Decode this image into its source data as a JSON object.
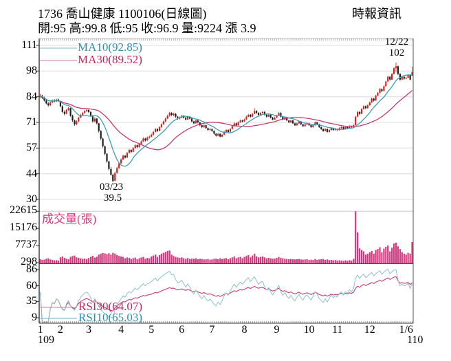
{
  "header": {
    "title": "1736 喬山健康 1100106(日線圖)",
    "provider": "時報資訊",
    "quote_line": "開:95 高:99.8 低:95 收:96.9 量:9224 漲 3.9",
    "open": "95",
    "high": "99.8",
    "low": "95",
    "close": "96.9",
    "volume": "9224",
    "change": "3.9"
  },
  "legends": {
    "ma10": "MA10(92.85)",
    "ma30": "MA30(89.52)",
    "volume": "成交量(張)",
    "rsi30": "RSI30(64.07)",
    "rsi10": "RSI10(65.03)"
  },
  "annotations": {
    "peak_date": "12/22",
    "peak_price": "102",
    "trough_date": "03/23",
    "trough_price": "39.5"
  },
  "colors": {
    "up_candle": "#cb2522",
    "down_candle": "#1c1c1c",
    "ma10_line": "#3f9cb5",
    "ma30_line": "#c43a6c",
    "rsi10_line": "#8cc0cd",
    "rsi30_line": "#c43a6c",
    "volume_bar": "#d8367e",
    "grid": "#dcdcdc",
    "axis": "#333333",
    "label_cyan": "#2e8fae",
    "label_crimson": "#c2275f",
    "label_magenta": "#d8367e"
  },
  "chart_data": {
    "type": "candlestick",
    "panels": [
      "price",
      "volume",
      "rsi"
    ],
    "price_axis": {
      "ticks": [
        {
          "label": "111",
          "v": 111
        },
        {
          "label": "98",
          "v": 97.5
        },
        {
          "label": "84",
          "v": 84
        },
        {
          "label": "71",
          "v": 70.5
        },
        {
          "label": "57",
          "v": 57
        },
        {
          "label": "44",
          "v": 43.5
        },
        {
          "label": "30",
          "v": 30
        }
      ],
      "range": [
        30,
        111
      ]
    },
    "volume_axis": {
      "ticks": [
        {
          "label": "22615",
          "v": 22615
        },
        {
          "label": "15176",
          "v": 15176
        },
        {
          "label": "7737",
          "v": 7737
        },
        {
          "label": "298",
          "v": 298
        }
      ],
      "range": [
        0,
        23000
      ]
    },
    "rsi_axis": {
      "ticks": [
        {
          "label": "86",
          "v": 86
        },
        {
          "label": "60",
          "v": 60
        },
        {
          "label": "35",
          "v": 35
        },
        {
          "label": "9",
          "v": 9
        }
      ],
      "range": [
        0,
        95
      ]
    },
    "x_axis": {
      "month_ticks": [
        {
          "label": "1",
          "index": 0
        },
        {
          "label": "2",
          "index": 10
        },
        {
          "label": "3",
          "index": 24
        },
        {
          "label": "4",
          "index": 40
        },
        {
          "label": "5",
          "index": 55
        },
        {
          "label": "6",
          "index": 70
        },
        {
          "label": "7",
          "index": 85
        },
        {
          "label": "8",
          "index": 101
        },
        {
          "label": "9",
          "index": 117
        },
        {
          "label": "10",
          "index": 133
        },
        {
          "label": "11",
          "index": 147
        },
        {
          "label": "12",
          "index": 163
        },
        {
          "label": "1/6",
          "index": 181
        }
      ],
      "year_left": "109",
      "year_right": "110"
    },
    "indicators": {
      "ma10_period": 10,
      "ma30_period": 30,
      "rsi10_period": 10,
      "rsi30_period": 30,
      "ma10_value": 92.85,
      "ma30_value": 89.52,
      "rsi10_value": 65.03,
      "rsi30_value": 64.07
    },
    "candle_format": [
      "open",
      "high",
      "low",
      "close",
      "volume"
    ],
    "candles": [
      [
        84.0,
        85.5,
        83.2,
        84.5,
        1800
      ],
      [
        84.5,
        85.0,
        82.8,
        83.5,
        1500
      ],
      [
        83.5,
        84.0,
        81.5,
        82.0,
        1600
      ],
      [
        82.0,
        82.5,
        80.0,
        80.5,
        2000
      ],
      [
        80.5,
        81.2,
        78.8,
        79.5,
        2200
      ],
      [
        79.5,
        81.5,
        79.0,
        81.0,
        1700
      ],
      [
        81.0,
        82.6,
        80.6,
        82.0,
        1500
      ],
      [
        82.0,
        82.8,
        81.0,
        81.5,
        1300
      ],
      [
        81.5,
        83.0,
        81.2,
        82.5,
        1400
      ],
      [
        82.5,
        83.0,
        81.4,
        82.0,
        1200
      ],
      [
        81.5,
        81.8,
        78.5,
        79.0,
        2600
      ],
      [
        79.0,
        79.5,
        75.5,
        76.0,
        3000
      ],
      [
        76.0,
        76.8,
        74.2,
        75.0,
        2400
      ],
      [
        75.0,
        77.5,
        74.8,
        77.0,
        2000
      ],
      [
        77.0,
        78.6,
        76.5,
        78.0,
        1800
      ],
      [
        78.0,
        78.2,
        73.5,
        74.0,
        2800
      ],
      [
        74.0,
        74.5,
        70.8,
        71.5,
        3200
      ],
      [
        71.5,
        72.0,
        68.8,
        69.5,
        3400
      ],
      [
        69.5,
        71.6,
        69.0,
        71.0,
        2600
      ],
      [
        71.0,
        73.5,
        70.6,
        73.0,
        2400
      ],
      [
        73.0,
        75.0,
        72.6,
        74.5,
        2200
      ],
      [
        74.5,
        76.0,
        74.0,
        75.5,
        2000
      ],
      [
        75.5,
        77.0,
        75.0,
        76.5,
        2100
      ],
      [
        76.5,
        77.6,
        75.8,
        77.0,
        1900
      ],
      [
        77.0,
        77.4,
        75.4,
        76.0,
        2300
      ],
      [
        76.0,
        76.4,
        73.4,
        74.0,
        2800
      ],
      [
        74.0,
        74.4,
        70.4,
        71.0,
        3300
      ],
      [
        71.0,
        73.2,
        70.6,
        72.5,
        2500
      ],
      [
        72.5,
        72.8,
        69.4,
        70.0,
        2900
      ],
      [
        70.0,
        70.2,
        65.2,
        66.0,
        3800
      ],
      [
        66.0,
        66.4,
        61.2,
        62.0,
        4200
      ],
      [
        62.0,
        62.5,
        57.2,
        58.0,
        4500
      ],
      [
        58.0,
        58.4,
        53.2,
        54.0,
        4300
      ],
      [
        54.0,
        54.5,
        49.2,
        50.0,
        4000
      ],
      [
        50.0,
        50.4,
        45.2,
        46.0,
        4400
      ],
      [
        46.0,
        47.0,
        42.4,
        43.0,
        3800
      ],
      [
        43.0,
        43.4,
        39.5,
        39.5,
        4600
      ],
      [
        39.8,
        44.6,
        39.6,
        44.0,
        4200
      ],
      [
        44.0,
        47.2,
        43.6,
        46.5,
        3600
      ],
      [
        46.5,
        49.6,
        46.0,
        49.0,
        3200
      ],
      [
        49.0,
        51.6,
        48.6,
        51.0,
        3000
      ],
      [
        51.0,
        53.5,
        50.6,
        53.0,
        2800
      ],
      [
        53.0,
        53.4,
        51.4,
        52.0,
        2200
      ],
      [
        52.0,
        55.0,
        51.8,
        54.5,
        2600
      ],
      [
        54.5,
        56.6,
        54.0,
        56.0,
        2400
      ],
      [
        56.0,
        56.4,
        54.4,
        55.0,
        1900
      ],
      [
        55.0,
        57.6,
        54.8,
        57.0,
        2300
      ],
      [
        57.0,
        59.0,
        56.6,
        58.5,
        2500
      ],
      [
        58.5,
        58.9,
        56.9,
        57.5,
        1800
      ],
      [
        57.5,
        59.6,
        57.2,
        59.0,
        2200
      ],
      [
        59.0,
        61.0,
        58.6,
        60.5,
        2600
      ],
      [
        60.5,
        62.6,
        60.2,
        62.0,
        2800
      ],
      [
        62.0,
        62.4,
        60.5,
        61.0,
        2000
      ],
      [
        61.0,
        63.0,
        60.8,
        62.5,
        2400
      ],
      [
        62.5,
        63.6,
        62.0,
        63.0,
        2200
      ],
      [
        63.0,
        64.6,
        62.6,
        64.0,
        3000
      ],
      [
        64.0,
        66.0,
        63.6,
        65.5,
        3400
      ],
      [
        65.5,
        67.5,
        65.2,
        67.0,
        3800
      ],
      [
        67.0,
        67.4,
        65.5,
        66.0,
        2800
      ],
      [
        66.0,
        68.5,
        65.8,
        68.0,
        3600
      ],
      [
        68.0,
        70.0,
        67.6,
        69.5,
        4200
      ],
      [
        69.5,
        71.5,
        69.2,
        71.0,
        4600
      ],
      [
        71.0,
        73.0,
        70.6,
        72.5,
        5000
      ],
      [
        72.5,
        74.5,
        72.2,
        74.0,
        5400
      ],
      [
        74.0,
        76.0,
        73.6,
        75.5,
        5600
      ],
      [
        75.5,
        75.9,
        73.9,
        74.5,
        3800
      ],
      [
        74.5,
        75.6,
        73.8,
        75.0,
        3200
      ],
      [
        75.0,
        75.4,
        72.9,
        73.5,
        2800
      ],
      [
        73.5,
        73.9,
        71.9,
        72.5,
        2600
      ],
      [
        72.5,
        73.6,
        72.0,
        73.0,
        2400
      ],
      [
        73.0,
        74.5,
        72.6,
        74.0,
        2600
      ],
      [
        74.0,
        74.4,
        72.5,
        73.0,
        2200
      ],
      [
        73.0,
        73.4,
        71.5,
        72.0,
        2000
      ],
      [
        72.0,
        74.0,
        71.8,
        73.5,
        2300
      ],
      [
        73.5,
        73.9,
        72.0,
        72.5,
        1900
      ],
      [
        72.5,
        72.9,
        70.5,
        71.0,
        2100
      ],
      [
        71.0,
        71.4,
        69.5,
        70.0,
        2000
      ],
      [
        70.0,
        72.0,
        69.8,
        71.5,
        2200
      ],
      [
        71.5,
        71.9,
        70.0,
        70.5,
        1800
      ],
      [
        70.5,
        70.9,
        68.5,
        69.0,
        2000
      ],
      [
        69.0,
        69.4,
        67.5,
        68.0,
        1900
      ],
      [
        68.0,
        69.5,
        67.6,
        69.0,
        1700
      ],
      [
        69.0,
        69.3,
        67.0,
        67.5,
        1800
      ],
      [
        67.5,
        67.9,
        66.0,
        66.5,
        1900
      ],
      [
        66.5,
        67.6,
        66.1,
        67.0,
        1600
      ],
      [
        67.0,
        67.3,
        65.5,
        66.0,
        1700
      ],
      [
        66.0,
        66.3,
        64.0,
        64.5,
        2000
      ],
      [
        64.5,
        64.9,
        63.0,
        63.5,
        2100
      ],
      [
        63.5,
        65.0,
        63.2,
        64.5,
        1800
      ],
      [
        64.5,
        64.8,
        62.6,
        63.0,
        2200
      ],
      [
        63.0,
        64.5,
        62.7,
        64.0,
        1900
      ],
      [
        64.0,
        66.0,
        63.7,
        65.5,
        2100
      ],
      [
        65.5,
        67.0,
        65.2,
        66.5,
        2300
      ],
      [
        66.5,
        66.9,
        65.0,
        65.5,
        1800
      ],
      [
        65.5,
        67.5,
        65.2,
        67.0,
        2200
      ],
      [
        67.0,
        69.0,
        66.7,
        68.5,
        2600
      ],
      [
        68.5,
        70.5,
        68.2,
        70.0,
        3000
      ],
      [
        70.0,
        70.4,
        68.6,
        69.0,
        2200
      ],
      [
        69.0,
        71.0,
        68.8,
        70.5,
        2600
      ],
      [
        70.5,
        72.0,
        70.2,
        71.5,
        2800
      ],
      [
        71.5,
        71.9,
        70.5,
        71.0,
        2200
      ],
      [
        71.0,
        72.5,
        70.7,
        72.0,
        2800
      ],
      [
        72.0,
        74.0,
        71.8,
        73.5,
        3200
      ],
      [
        73.5,
        75.0,
        73.2,
        74.5,
        3600
      ],
      [
        74.5,
        74.9,
        73.0,
        73.5,
        2600
      ],
      [
        73.5,
        75.5,
        73.2,
        75.0,
        3400
      ],
      [
        75.0,
        78.0,
        74.8,
        76.5,
        4200
      ],
      [
        76.5,
        76.9,
        75.0,
        75.5,
        3000
      ],
      [
        75.5,
        75.9,
        74.0,
        74.5,
        2600
      ],
      [
        74.5,
        76.0,
        74.2,
        75.5,
        2800
      ],
      [
        75.5,
        76.5,
        75.0,
        76.0,
        3000
      ],
      [
        76.0,
        76.4,
        74.1,
        74.5,
        2600
      ],
      [
        74.5,
        74.9,
        73.0,
        73.5,
        2200
      ],
      [
        73.5,
        75.0,
        73.2,
        74.5,
        2400
      ],
      [
        74.5,
        74.8,
        72.6,
        73.0,
        2200
      ],
      [
        73.0,
        73.4,
        71.6,
        72.0,
        2000
      ],
      [
        72.0,
        73.5,
        71.8,
        73.0,
        2100
      ],
      [
        73.0,
        74.5,
        72.7,
        74.0,
        2400
      ],
      [
        74.0,
        76.0,
        73.8,
        75.5,
        2800
      ],
      [
        75.5,
        75.8,
        73.1,
        73.5,
        2400
      ],
      [
        73.5,
        73.9,
        71.6,
        72.0,
        2200
      ],
      [
        72.0,
        73.5,
        71.8,
        73.0,
        2000
      ],
      [
        73.0,
        73.3,
        71.1,
        71.5,
        1900
      ],
      [
        71.5,
        71.9,
        70.1,
        70.5,
        1800
      ],
      [
        70.5,
        72.0,
        70.2,
        71.5,
        1900
      ],
      [
        71.5,
        71.8,
        69.6,
        70.0,
        1800
      ],
      [
        70.0,
        70.4,
        68.6,
        69.0,
        1700
      ],
      [
        69.0,
        70.5,
        68.8,
        70.0,
        1800
      ],
      [
        70.0,
        71.5,
        69.7,
        71.0,
        1900
      ],
      [
        71.0,
        71.3,
        69.1,
        69.5,
        1700
      ],
      [
        69.5,
        69.9,
        68.1,
        68.5,
        1600
      ],
      [
        68.5,
        70.0,
        68.2,
        69.5,
        1700
      ],
      [
        69.5,
        70.6,
        69.1,
        70.0,
        1800
      ],
      [
        70.0,
        70.3,
        68.6,
        69.0,
        1500
      ],
      [
        69.0,
        69.4,
        67.6,
        68.0,
        1600
      ],
      [
        68.0,
        69.5,
        67.7,
        69.0,
        1500
      ],
      [
        69.0,
        71.0,
        68.8,
        70.5,
        1900
      ],
      [
        70.5,
        70.8,
        69.1,
        69.5,
        1500
      ],
      [
        69.5,
        69.8,
        67.6,
        68.0,
        1700
      ],
      [
        68.0,
        68.4,
        66.6,
        67.0,
        1800
      ],
      [
        67.0,
        67.4,
        65.6,
        66.0,
        1900
      ],
      [
        66.0,
        67.5,
        65.8,
        67.0,
        1500
      ],
      [
        67.0,
        67.3,
        65.1,
        65.5,
        1700
      ],
      [
        65.5,
        67.0,
        65.2,
        66.5,
        1400
      ],
      [
        66.5,
        68.0,
        66.2,
        67.5,
        1500
      ],
      [
        67.5,
        67.8,
        66.1,
        66.5,
        1300
      ],
      [
        66.5,
        67.6,
        66.1,
        67.0,
        1400
      ],
      [
        67.0,
        67.3,
        66.0,
        66.5,
        1200
      ],
      [
        66.5,
        68.0,
        66.2,
        67.5,
        1300
      ],
      [
        67.5,
        68.5,
        67.1,
        68.0,
        1200
      ],
      [
        68.0,
        68.3,
        66.6,
        67.0,
        1100
      ],
      [
        67.0,
        68.5,
        66.8,
        68.0,
        1300
      ],
      [
        68.0,
        68.3,
        67.0,
        67.5,
        1100
      ],
      [
        67.5,
        69.0,
        67.2,
        68.5,
        1400
      ],
      [
        68.5,
        68.8,
        67.5,
        68.0,
        1200
      ],
      [
        68.0,
        69.5,
        67.8,
        69.0,
        2000
      ],
      [
        69.0,
        73.9,
        68.9,
        73.5,
        22615
      ],
      [
        73.5,
        76.5,
        73.2,
        76.0,
        13500
      ],
      [
        76.0,
        76.4,
        74.4,
        75.0,
        6500
      ],
      [
        75.0,
        78.0,
        74.8,
        77.5,
        5800
      ],
      [
        77.5,
        79.5,
        77.2,
        79.0,
        5200
      ],
      [
        79.0,
        79.4,
        77.4,
        78.0,
        3800
      ],
      [
        78.0,
        80.0,
        77.7,
        79.5,
        4200
      ],
      [
        79.5,
        81.5,
        79.2,
        81.0,
        4800
      ],
      [
        81.0,
        83.5,
        80.7,
        83.0,
        5400
      ],
      [
        83.0,
        83.4,
        81.4,
        82.0,
        4200
      ],
      [
        82.0,
        85.0,
        81.8,
        84.5,
        5800
      ],
      [
        84.5,
        86.5,
        84.2,
        86.0,
        6200
      ],
      [
        86.0,
        88.5,
        85.7,
        88.0,
        7000
      ],
      [
        88.0,
        88.4,
        86.4,
        87.0,
        4800
      ],
      [
        87.0,
        90.0,
        86.8,
        89.5,
        6400
      ],
      [
        89.5,
        92.5,
        89.2,
        92.0,
        7200
      ],
      [
        92.0,
        95.0,
        91.7,
        94.5,
        7800
      ],
      [
        94.5,
        94.9,
        92.4,
        93.0,
        5200
      ],
      [
        93.0,
        96.5,
        92.8,
        96.0,
        6800
      ],
      [
        96.0,
        99.5,
        95.7,
        99.0,
        8600
      ],
      [
        99.0,
        102.0,
        97.0,
        100.0,
        9000
      ],
      [
        100.0,
        100.4,
        95.4,
        96.0,
        7400
      ],
      [
        96.0,
        96.4,
        92.4,
        93.0,
        6200
      ],
      [
        93.0,
        95.0,
        92.7,
        94.5,
        4800
      ],
      [
        94.5,
        94.9,
        92.9,
        93.5,
        4200
      ],
      [
        93.5,
        94.5,
        93.1,
        94.0,
        3800
      ],
      [
        94.0,
        96.0,
        93.7,
        95.5,
        4600
      ],
      [
        95.5,
        95.8,
        92.6,
        93.0,
        4200
      ],
      [
        95.0,
        99.8,
        95.0,
        96.9,
        9224
      ]
    ]
  }
}
